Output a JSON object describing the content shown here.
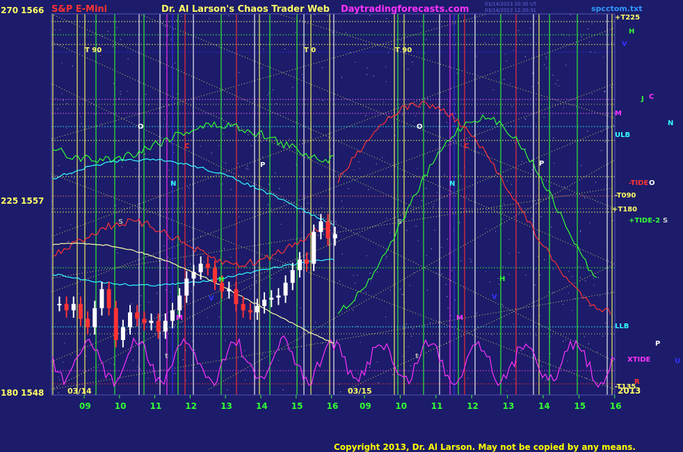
{
  "header": {
    "instrument": "S&P E-Mini",
    "title": "Dr. Al Larson's Chaos Trader Web",
    "site": "Daytradingforecasts.com",
    "timestamp_line1": "03/14/2013 20:30 UT",
    "timestamp_line2": "03/14/2013 12:20:31",
    "file": "spcctom.txt"
  },
  "footer": {
    "copyright": "Copyright 2013, Dr. Al Larson.  May not be copied by any means."
  },
  "colors": {
    "background": "#1c1c6a",
    "instrument": "#ff3333",
    "title": "#ffff66",
    "site": "#ff33ff",
    "copyright": "#ffff00"
  },
  "chart_data": {
    "type": "line",
    "title": "Dr. Al Larson's Chaos Trader Web",
    "y_axis": {
      "left_labels": [
        {
          "scale": "270",
          "price": "1566"
        },
        {
          "scale": "225",
          "price": "1557"
        },
        {
          "scale": "180",
          "price": "1548"
        }
      ],
      "ylim": [
        1548,
        1566
      ]
    },
    "x_axis": {
      "dates": [
        "03/14",
        "03/15"
      ],
      "hour_ticks": [
        "09",
        "10",
        "11",
        "12",
        "13",
        "14",
        "15",
        "16",
        "09",
        "10",
        "11",
        "12",
        "13",
        "14",
        "15",
        "16"
      ],
      "year": "2013"
    },
    "right_labels": [
      {
        "text": "+T225",
        "color": "#ffff66"
      },
      {
        "text": "H",
        "color": "#33ff33"
      },
      {
        "text": "V",
        "color": "#3333ff"
      },
      {
        "text": "J",
        "color": "#33ff33"
      },
      {
        "text": "C",
        "color": "#ff33ff"
      },
      {
        "text": "M",
        "color": "#ff33ff"
      },
      {
        "text": "N",
        "color": "#33ffff"
      },
      {
        "text": "ULB",
        "color": "#33ffff"
      },
      {
        "text": "-TIDE",
        "color": "#ff3333"
      },
      {
        "text": "O",
        "color": "#ffffff"
      },
      {
        "text": "-T090",
        "color": "#ffff66"
      },
      {
        "text": "+T180",
        "color": "#ffff66"
      },
      {
        "text": "+TIDE-2",
        "color": "#33ff33"
      },
      {
        "text": "S",
        "color": "#cccccc"
      },
      {
        "text": "LLB",
        "color": "#33ffff"
      },
      {
        "text": "P",
        "color": "#ffffff"
      },
      {
        "text": "XTIDE",
        "color": "#ff33ff"
      },
      {
        "text": "U",
        "color": "#3333ff"
      },
      {
        "text": "-T135",
        "color": "#ffff66"
      },
      {
        "text": "R",
        "color": "#ff3333"
      }
    ],
    "chart_annotations": [
      {
        "text": "T  90",
        "color": "#ffff66"
      },
      {
        "text": "T  0",
        "color": "#ffff66"
      },
      {
        "text": "T  90",
        "color": "#ffff66"
      },
      {
        "text": "O",
        "color": "#ffffff"
      },
      {
        "text": "O",
        "color": "#ffffff"
      },
      {
        "text": "C",
        "color": "#ff3333"
      },
      {
        "text": "C",
        "color": "#ff3333"
      },
      {
        "text": "P",
        "color": "#ffffff"
      },
      {
        "text": "P",
        "color": "#ffffff"
      },
      {
        "text": "N",
        "color": "#33ffff"
      },
      {
        "text": "N",
        "color": "#33ffff"
      },
      {
        "text": "S",
        "color": "#aaaaaa"
      },
      {
        "text": "S",
        "color": "#aaaaaa"
      },
      {
        "text": "H",
        "color": "#33ff33"
      },
      {
        "text": "H",
        "color": "#33ff33"
      },
      {
        "text": "V",
        "color": "#3333ff"
      },
      {
        "text": "V",
        "color": "#3333ff"
      },
      {
        "text": "M",
        "color": "#ff33ff"
      },
      {
        "text": "M",
        "color": "#ff33ff"
      },
      {
        "text": "t",
        "color": "#aaaaaa"
      },
      {
        "text": "t",
        "color": "#aaaaaa"
      }
    ],
    "price_series": {
      "name": "S&P E-Mini",
      "hours": [
        8.3,
        8.5,
        8.7,
        8.9,
        9.1,
        9.3,
        9.5,
        9.7,
        9.9,
        10.1,
        10.3,
        10.5,
        10.7,
        10.9,
        11.1,
        11.3,
        11.5,
        11.7,
        11.9,
        12.1,
        12.3,
        12.5,
        12.7,
        12.9,
        13.1,
        13.3,
        13.5,
        13.7,
        13.9,
        14.1,
        14.3,
        14.5,
        14.7,
        14.9,
        15.1,
        15.3,
        15.5,
        15.7,
        15.9,
        16.1
      ],
      "close": [
        1552.3,
        1552.0,
        1552.3,
        1551.6,
        1551.2,
        1552.1,
        1553.0,
        1552.1,
        1550.6,
        1551.2,
        1551.9,
        1551.6,
        1551.4,
        1551.5,
        1551.0,
        1551.5,
        1552.0,
        1552.7,
        1553.5,
        1553.8,
        1554.2,
        1554.0,
        1553.3,
        1552.9,
        1553.0,
        1552.3,
        1552.0,
        1551.9,
        1552.2,
        1552.5,
        1552.6,
        1552.7,
        1553.3,
        1553.9,
        1554.4,
        1554.2,
        1555.7,
        1556.2,
        1555.4,
        1555.6
      ]
    }
  }
}
